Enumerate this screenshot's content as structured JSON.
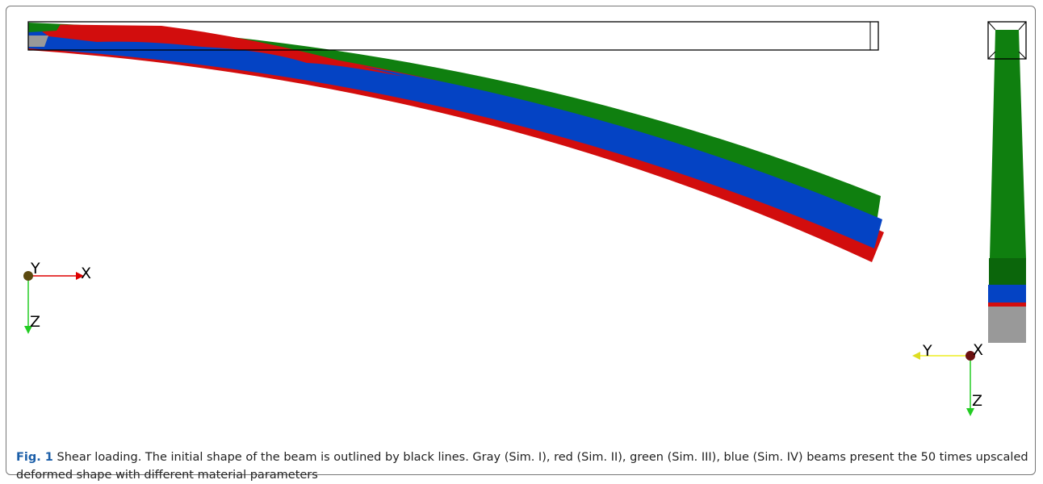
{
  "front_view": {
    "axes": {
      "y": "Y",
      "x": "X",
      "z": "Z"
    }
  },
  "side_view": {
    "axes": {
      "y": "Y",
      "x": "X",
      "z": "Z"
    }
  },
  "caption": {
    "label": "Fig. 1",
    "text": "Shear loading. The initial shape of the beam is outlined by black lines. Gray (Sim. I), red (Sim. II), green (Sim. III), blue (Sim. IV) beams present the 50 times upscaled deformed shape with different material parameters"
  }
}
